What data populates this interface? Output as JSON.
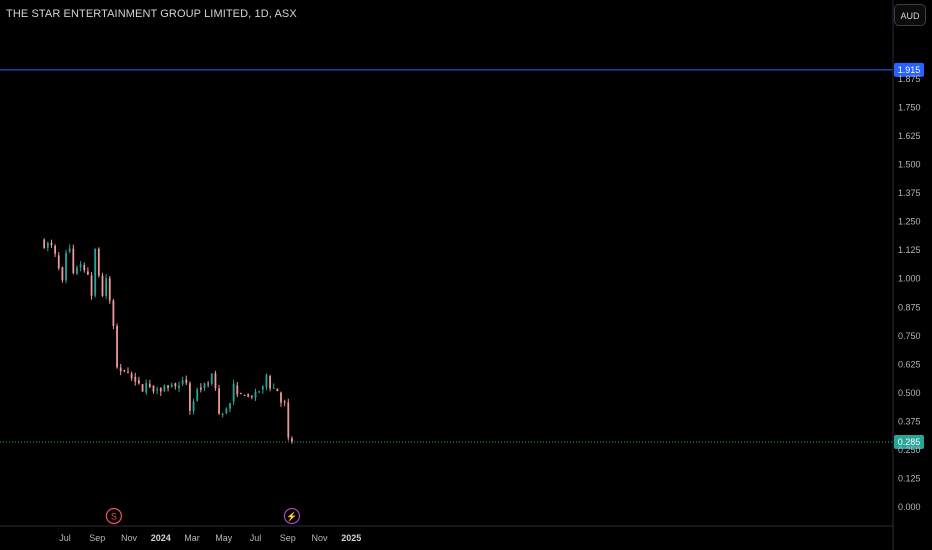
{
  "header": {
    "title": "THE STAR ENTERTAINMENT GROUP LIMITED, 1D, ASX",
    "currency_label": "AUD"
  },
  "colors": {
    "background": "#000000",
    "up": "#26a69a",
    "down": "#ef9a9a",
    "high_line": "#2962ff",
    "last_line": "#26a69a",
    "high_badge": "#2962ff",
    "last_badge": "#26a69a",
    "event_s": "#f7525f",
    "event_bolt": "#ab47bc"
  },
  "chart_data": {
    "type": "candlestick",
    "y_ticks": [
      "1.875",
      "1.750",
      "1.625",
      "1.500",
      "1.375",
      "1.250",
      "1.125",
      "1.000",
      "0.875",
      "0.750",
      "0.625",
      "0.500",
      "0.375",
      "0.250",
      "0.125",
      "0.000"
    ],
    "y_tick_values": [
      1.875,
      1.75,
      1.625,
      1.5,
      1.375,
      1.25,
      1.125,
      1.0,
      0.875,
      0.75,
      0.625,
      0.5,
      0.375,
      0.25,
      0.125,
      0.0
    ],
    "ylim": [
      0.0,
      1.875
    ],
    "x_ticks": [
      {
        "label": "Jul",
        "date": "2023-07-01"
      },
      {
        "label": "Sep",
        "date": "2023-09-01"
      },
      {
        "label": "Nov",
        "date": "2023-11-01"
      },
      {
        "label": "2024",
        "date": "2024-01-01",
        "bold": true
      },
      {
        "label": "Mar",
        "date": "2024-03-01"
      },
      {
        "label": "May",
        "date": "2024-05-01"
      },
      {
        "label": "Jul",
        "date": "2024-07-01"
      },
      {
        "label": "Sep",
        "date": "2024-09-01"
      },
      {
        "label": "Nov",
        "date": "2024-11-01"
      },
      {
        "label": "2025",
        "date": "2025-01-01",
        "bold": true
      }
    ],
    "high_line": {
      "label": "1.915",
      "value": 1.915
    },
    "last_price": {
      "label": "0.285",
      "value": 0.285
    },
    "events": [
      {
        "symbol": "S",
        "date": "2023-10-03",
        "color": "#f7525f"
      },
      {
        "symbol": "⚡",
        "date": "2024-09-09",
        "color": "#ab47bc"
      }
    ],
    "series": [
      {
        "close_by_date": [
          [
            "2023-05-15",
            1.165
          ],
          [
            "2023-05-22",
            1.15
          ],
          [
            "2023-05-29",
            1.15
          ],
          [
            "2023-06-05",
            1.14
          ],
          [
            "2023-06-12",
            1.1
          ],
          [
            "2023-06-19",
            1.04
          ],
          [
            "2023-06-26",
            0.98
          ],
          [
            "2023-07-03",
            1.1
          ],
          [
            "2023-07-10",
            1.13
          ],
          [
            "2023-07-17",
            1.03
          ],
          [
            "2023-07-24",
            1.06
          ],
          [
            "2023-07-31",
            1.05
          ],
          [
            "2023-08-07",
            1.05
          ],
          [
            "2023-08-14",
            1.02
          ],
          [
            "2023-08-21",
            0.93
          ],
          [
            "2023-08-28",
            1.13
          ],
          [
            "2023-09-04",
            1.02
          ],
          [
            "2023-09-11",
            0.93
          ],
          [
            "2023-09-18",
            0.99
          ],
          [
            "2023-09-25",
            0.9
          ],
          [
            "2023-10-02",
            0.78
          ],
          [
            "2023-10-09",
            0.62
          ],
          [
            "2023-10-16",
            0.6
          ],
          [
            "2023-10-23",
            0.61
          ],
          [
            "2023-10-30",
            0.6
          ],
          [
            "2023-11-06",
            0.56
          ],
          [
            "2023-11-13",
            0.56
          ],
          [
            "2023-11-20",
            0.53
          ],
          [
            "2023-11-27",
            0.52
          ],
          [
            "2023-12-04",
            0.54
          ],
          [
            "2023-12-11",
            0.52
          ],
          [
            "2023-12-18",
            0.51
          ],
          [
            "2023-12-25",
            0.53
          ],
          [
            "2024-01-01",
            0.52
          ],
          [
            "2024-01-08",
            0.53
          ],
          [
            "2024-01-15",
            0.53
          ],
          [
            "2024-01-22",
            0.53
          ],
          [
            "2024-01-29",
            0.54
          ],
          [
            "2024-02-05",
            0.52
          ],
          [
            "2024-02-12",
            0.54
          ],
          [
            "2024-02-19",
            0.55
          ],
          [
            "2024-02-26",
            0.43
          ],
          [
            "2024-03-04",
            0.46
          ],
          [
            "2024-03-11",
            0.52
          ],
          [
            "2024-03-18",
            0.52
          ],
          [
            "2024-03-25",
            0.53
          ],
          [
            "2024-04-01",
            0.55
          ],
          [
            "2024-04-08",
            0.57
          ],
          [
            "2024-04-15",
            0.53
          ],
          [
            "2024-04-22",
            0.41
          ],
          [
            "2024-04-29",
            0.4
          ],
          [
            "2024-05-06",
            0.44
          ],
          [
            "2024-05-13",
            0.45
          ],
          [
            "2024-05-20",
            0.53
          ],
          [
            "2024-05-27",
            0.48
          ],
          [
            "2024-06-03",
            0.49
          ],
          [
            "2024-06-10",
            0.5
          ],
          [
            "2024-06-17",
            0.48
          ],
          [
            "2024-06-24",
            0.49
          ],
          [
            "2024-07-01",
            0.49
          ],
          [
            "2024-07-08",
            0.51
          ],
          [
            "2024-07-15",
            0.52
          ],
          [
            "2024-07-22",
            0.58
          ],
          [
            "2024-07-29",
            0.53
          ],
          [
            "2024-08-05",
            0.52
          ],
          [
            "2024-08-12",
            0.51
          ],
          [
            "2024-08-19",
            0.46
          ],
          [
            "2024-08-26",
            0.45
          ],
          [
            "2024-09-02",
            0.29
          ],
          [
            "2024-09-09",
            0.285
          ]
        ]
      }
    ]
  }
}
